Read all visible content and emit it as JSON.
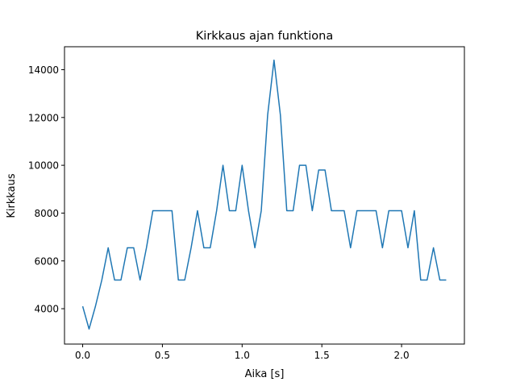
{
  "chart_data": {
    "type": "line",
    "title": "Kirkkaus ajan funktiona",
    "xlabel": "Aika [s]",
    "ylabel": "Kirkkaus",
    "xlim": [
      -0.114,
      2.394
    ],
    "ylim": [
      2520,
      14960
    ],
    "xticks": [
      0.0,
      0.5,
      1.0,
      1.5,
      2.0
    ],
    "xtick_labels": [
      "0.0",
      "0.5",
      "1.0",
      "1.5",
      "2.0"
    ],
    "yticks": [
      4000,
      6000,
      8000,
      10000,
      12000,
      14000
    ],
    "ytick_labels": [
      "4000",
      "6000",
      "8000",
      "10000",
      "12000",
      "14000"
    ],
    "grid": false,
    "series": [
      {
        "name": "Kirkkaus",
        "color": "#1f77b4",
        "x_start": 0.0,
        "x_step": 0.04,
        "values": [
          4100,
          3150,
          4100,
          5200,
          6550,
          5200,
          5200,
          6550,
          6550,
          5200,
          6550,
          8100,
          8100,
          8100,
          8100,
          5200,
          5200,
          6550,
          8100,
          6550,
          6550,
          8100,
          10000,
          8100,
          8100,
          10000,
          8100,
          6550,
          8100,
          12100,
          14400,
          12100,
          8100,
          8100,
          10000,
          10000,
          8100,
          9800,
          9800,
          8100,
          8100,
          8100,
          6550,
          8100,
          8100,
          8100,
          8100,
          6550,
          8100,
          8100,
          8100,
          6550,
          8100,
          5200,
          5200,
          6550,
          5200,
          5200
        ]
      }
    ]
  }
}
